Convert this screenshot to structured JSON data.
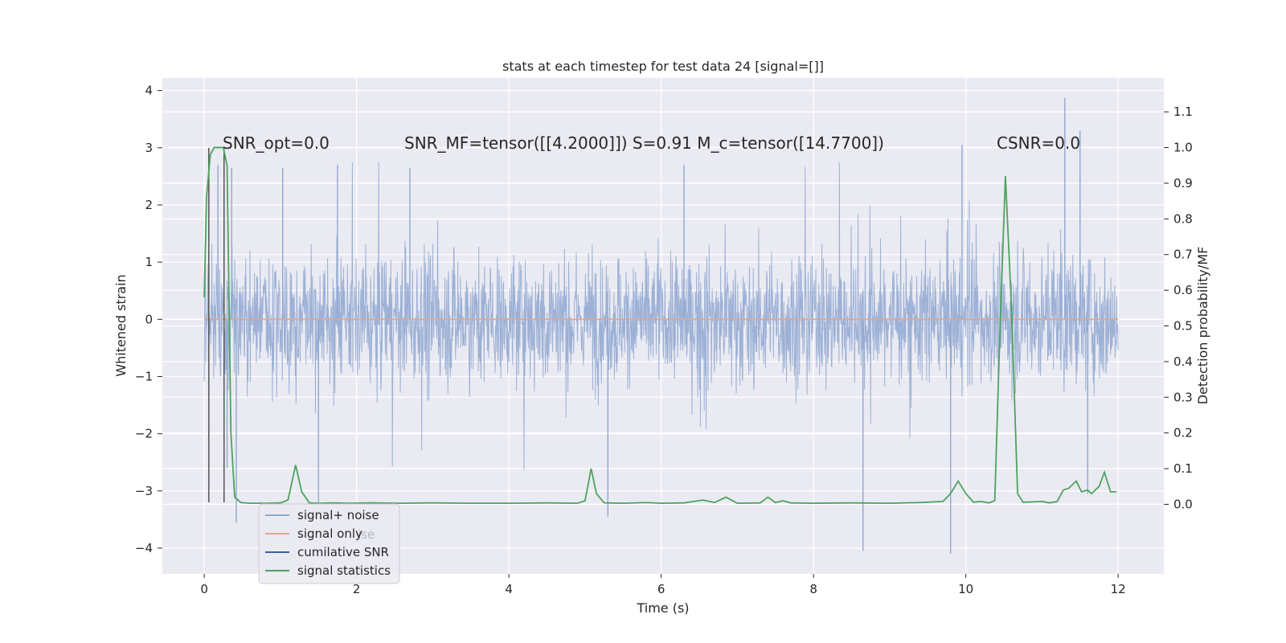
{
  "chart_data": {
    "type": "line",
    "title": "stats at each timestep for test data 24 [signal=[]]",
    "xlabel": "Time (s)",
    "ylabel": "Whitened strain",
    "ylabel_right": "Detection probability/MF",
    "xlim": [
      -0.55,
      12.6
    ],
    "ylim": [
      -4.45,
      4.22
    ],
    "ylim_right": [
      -0.195,
      1.195
    ],
    "x_ticks": [
      0,
      2,
      4,
      6,
      8,
      10,
      12
    ],
    "x_tick_labels": [
      "0",
      "2",
      "4",
      "6",
      "8",
      "10",
      "12"
    ],
    "y_ticks": [
      -4,
      -3,
      -2,
      -1,
      0,
      1,
      2,
      3,
      4
    ],
    "y_tick_labels": [
      "−4",
      "−3",
      "−2",
      "−1",
      "0",
      "1",
      "2",
      "3",
      "4"
    ],
    "y_right_ticks": [
      0.0,
      0.1,
      0.2,
      0.3,
      0.4,
      0.5,
      0.6,
      0.7,
      0.8,
      0.9,
      1.0,
      1.1
    ],
    "y_right_tick_labels": [
      "0.0",
      "0.1",
      "0.2",
      "0.3",
      "0.4",
      "0.5",
      "0.6",
      "0.7",
      "0.8",
      "0.9",
      "1.0",
      "1.1"
    ],
    "grid": true,
    "legend_position": "lower-left",
    "legend": [
      {
        "label": "signal+ noise",
        "color": "#8fa7d1"
      },
      {
        "label": "signal only",
        "color": "#e4a58a"
      },
      {
        "label": "cumilative SNR",
        "color": "#3a5fa6"
      },
      {
        "label": "signal statistics",
        "color": "#4da35c"
      }
    ],
    "legend_ghost_text": [
      "ise"
    ],
    "annotations": [
      {
        "id": "snr_opt",
        "text": "SNR_opt=0.0"
      },
      {
        "id": "snr_mf",
        "text": "SNR_MF=tensor([[4.2000]])  S=0.91  M_c=tensor([14.7700])"
      },
      {
        "id": "csnr",
        "text": "CSNR=0.0"
      }
    ],
    "series": [
      {
        "name": "signal+ noise",
        "axis": "left",
        "color": "#8fa7d1",
        "t_start": 0.0,
        "t_end": 12.0,
        "noise_std": 0.55,
        "spikes": [
          {
            "x": 0.06,
            "y": 2.2
          },
          {
            "x": 0.18,
            "y": 2.7
          },
          {
            "x": 0.3,
            "y": -2.6
          },
          {
            "x": 0.36,
            "y": 2.65
          },
          {
            "x": 0.42,
            "y": -3.55
          },
          {
            "x": 1.03,
            "y": 2.65
          },
          {
            "x": 1.5,
            "y": -3.2
          },
          {
            "x": 1.75,
            "y": 2.7
          },
          {
            "x": 2.7,
            "y": 2.65
          },
          {
            "x": 5.3,
            "y": -3.45
          },
          {
            "x": 6.3,
            "y": 2.7
          },
          {
            "x": 8.65,
            "y": -4.05
          },
          {
            "x": 9.8,
            "y": -4.1
          },
          {
            "x": 9.95,
            "y": 3.05
          },
          {
            "x": 11.3,
            "y": 3.87
          },
          {
            "x": 11.5,
            "y": 3.3
          },
          {
            "x": 11.6,
            "y": -3.05
          }
        ]
      },
      {
        "name": "signal only",
        "axis": "left",
        "color": "#e4a58a",
        "points": [
          [
            0.0,
            0.0
          ],
          [
            12.0,
            0.0
          ]
        ]
      },
      {
        "name": "cumilative SNR",
        "axis": "left",
        "color": "#3a5fa6",
        "points": []
      },
      {
        "name": "signal statistics",
        "axis": "right",
        "color": "#4da35c",
        "points": [
          [
            0.0,
            0.58
          ],
          [
            0.03,
            0.86
          ],
          [
            0.08,
            0.98
          ],
          [
            0.13,
            1.0
          ],
          [
            0.2,
            1.0
          ],
          [
            0.25,
            1.0
          ],
          [
            0.3,
            0.95
          ],
          [
            0.35,
            0.2
          ],
          [
            0.4,
            0.02
          ],
          [
            0.48,
            0.005
          ],
          [
            0.6,
            0.003
          ],
          [
            0.8,
            0.003
          ],
          [
            1.0,
            0.004
          ],
          [
            1.1,
            0.012
          ],
          [
            1.2,
            0.11
          ],
          [
            1.28,
            0.035
          ],
          [
            1.38,
            0.004
          ],
          [
            1.5,
            0.003
          ],
          [
            1.7,
            0.004
          ],
          [
            1.9,
            0.003
          ],
          [
            2.2,
            0.004
          ],
          [
            2.6,
            0.003
          ],
          [
            3.0,
            0.004
          ],
          [
            3.5,
            0.003
          ],
          [
            4.0,
            0.003
          ],
          [
            4.5,
            0.004
          ],
          [
            4.9,
            0.003
          ],
          [
            5.0,
            0.01
          ],
          [
            5.08,
            0.1
          ],
          [
            5.15,
            0.03
          ],
          [
            5.25,
            0.004
          ],
          [
            5.5,
            0.003
          ],
          [
            5.8,
            0.005
          ],
          [
            6.0,
            0.003
          ],
          [
            6.3,
            0.004
          ],
          [
            6.55,
            0.012
          ],
          [
            6.7,
            0.005
          ],
          [
            6.85,
            0.02
          ],
          [
            7.0,
            0.003
          ],
          [
            7.3,
            0.004
          ],
          [
            7.4,
            0.02
          ],
          [
            7.5,
            0.005
          ],
          [
            7.6,
            0.01
          ],
          [
            7.7,
            0.004
          ],
          [
            8.0,
            0.003
          ],
          [
            8.5,
            0.004
          ],
          [
            9.0,
            0.003
          ],
          [
            9.4,
            0.005
          ],
          [
            9.7,
            0.008
          ],
          [
            9.8,
            0.03
          ],
          [
            9.9,
            0.065
          ],
          [
            10.0,
            0.03
          ],
          [
            10.1,
            0.006
          ],
          [
            10.2,
            0.008
          ],
          [
            10.3,
            0.004
          ],
          [
            10.38,
            0.01
          ],
          [
            10.45,
            0.5
          ],
          [
            10.52,
            0.92
          ],
          [
            10.6,
            0.55
          ],
          [
            10.68,
            0.03
          ],
          [
            10.75,
            0.006
          ],
          [
            10.9,
            0.007
          ],
          [
            11.0,
            0.008
          ],
          [
            11.1,
            0.004
          ],
          [
            11.2,
            0.008
          ],
          [
            11.28,
            0.04
          ],
          [
            11.35,
            0.045
          ],
          [
            11.45,
            0.065
          ],
          [
            11.52,
            0.035
          ],
          [
            11.6,
            0.04
          ],
          [
            11.65,
            0.03
          ],
          [
            11.75,
            0.05
          ],
          [
            11.82,
            0.09
          ],
          [
            11.9,
            0.035
          ],
          [
            11.98,
            0.035
          ]
        ]
      }
    ],
    "markers": [
      {
        "name": "merger-marker-1",
        "x": 0.06,
        "y_from": -3.2,
        "y_to": 3.0,
        "color": "#555555"
      },
      {
        "name": "merger-marker-2",
        "x": 0.26,
        "y_from": -3.2,
        "y_to": 3.0,
        "color": "#555555"
      }
    ]
  }
}
